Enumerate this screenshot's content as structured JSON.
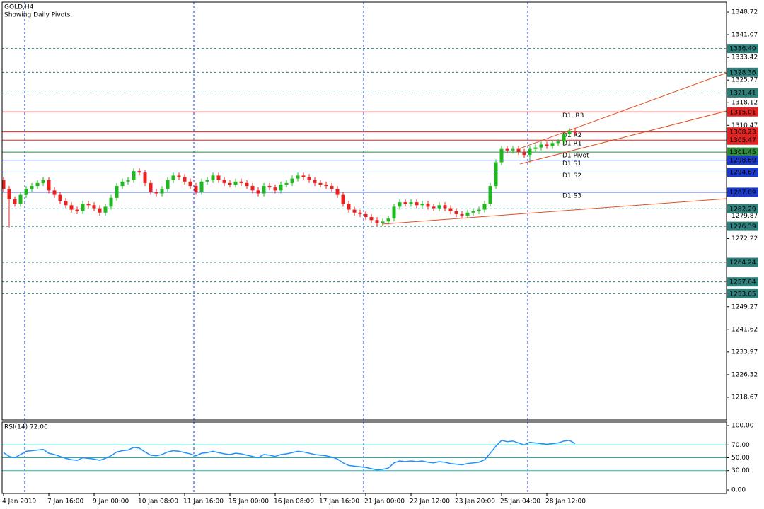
{
  "chart_data": [
    {
      "type": "candlestick",
      "title": "GOLD,H4",
      "subtitle": "Showing Daily Pivots.",
      "x": [
        "4 Jan 2019",
        null,
        null,
        null,
        null,
        null,
        null,
        null,
        "7 Jan 16:00",
        null,
        null,
        null,
        null,
        null,
        null,
        null,
        "9 Jan 00:00",
        null,
        null,
        null,
        null,
        null,
        null,
        null,
        "10 Jan 08:00",
        null,
        null,
        null,
        null,
        null,
        null,
        null,
        "11 Jan 16:00",
        null,
        null,
        null,
        null,
        null,
        null,
        null,
        "15 Jan 00:00",
        null,
        null,
        null,
        null,
        null,
        null,
        null,
        "16 Jan 08:00",
        null,
        null,
        null,
        null,
        null,
        null,
        null,
        "17 Jan 16:00",
        null,
        null,
        null,
        null,
        null,
        null,
        null,
        "21 Jan 00:00",
        null,
        null,
        null,
        null,
        null,
        null,
        null,
        "22 Jan 12:00",
        null,
        null,
        null,
        null,
        null,
        null,
        null,
        "23 Jan 20:00",
        null,
        null,
        null,
        null,
        null,
        null,
        null,
        "25 Jan 04:00",
        null,
        null,
        null,
        null,
        null,
        null,
        null,
        "28 Jan 12:00",
        null,
        null,
        null,
        null,
        null
      ],
      "open": [
        1292,
        1289,
        1285.5,
        1284,
        1287,
        1289,
        1290,
        1291,
        1292,
        1288.5,
        1287,
        1285,
        1283.5,
        1282,
        1281.5,
        1284,
        1283.5,
        1282.5,
        1281,
        1283,
        1286,
        1290,
        1291.5,
        1292,
        1295,
        1294.5,
        1291,
        1288,
        1287.5,
        1289,
        1292,
        1293.5,
        1293,
        1291.5,
        1290,
        1288,
        1291.5,
        1292,
        1293.5,
        1292,
        1291,
        1290.5,
        1291.5,
        1291,
        1290,
        1288.5,
        1287.5,
        1290,
        1289.5,
        1288.5,
        1290.5,
        1291,
        1292.5,
        1293.5,
        1293,
        1292,
        1291,
        1290.5,
        1290,
        1289,
        1287,
        1284,
        1282,
        1281,
        1280.5,
        1279.5,
        1278.5,
        1277.5,
        1278,
        1279,
        1283,
        1284.5,
        1284,
        1284.5,
        1283.5,
        1284,
        1283,
        1282.5,
        1283.5,
        1282.5,
        1281.5,
        1280.5,
        1280,
        1281,
        1281.5,
        1282,
        1284,
        1290,
        1298,
        1302.5,
        1302,
        1302.5,
        1301.5,
        1300.5,
        1302.5,
        1303,
        1304,
        1303.5,
        1304.5,
        1305,
        1307.5,
        1308.5
      ],
      "high": [
        1293,
        1290,
        1286.5,
        1288,
        1290,
        1291,
        1292,
        1293,
        1293,
        1289.5,
        1288,
        1286,
        1284.5,
        1283,
        1285,
        1285,
        1284.5,
        1283.5,
        1284,
        1287,
        1291,
        1292.5,
        1293,
        1296,
        1296,
        1295.5,
        1292,
        1289,
        1290,
        1293,
        1294.5,
        1294.5,
        1294,
        1292.5,
        1291,
        1292.5,
        1293,
        1294.5,
        1294.5,
        1293,
        1292,
        1292.5,
        1292.5,
        1292,
        1291,
        1289.5,
        1291,
        1291,
        1290.5,
        1291.5,
        1292,
        1293.5,
        1294.5,
        1294.5,
        1294,
        1293,
        1292,
        1291.5,
        1291,
        1290,
        1288,
        1285,
        1283,
        1282,
        1281.5,
        1280.5,
        1279.5,
        1279,
        1280,
        1284,
        1285.5,
        1285.5,
        1285.5,
        1285.5,
        1285,
        1285,
        1284,
        1284.5,
        1284.5,
        1283.5,
        1282.5,
        1281.5,
        1282,
        1282.5,
        1283,
        1285,
        1291,
        1299,
        1303.5,
        1303.5,
        1303.5,
        1303.5,
        1302.5,
        1303.5,
        1304,
        1305,
        1305,
        1305.5,
        1306,
        1308.5,
        1309.5,
        1309.5
      ],
      "low": [
        1288,
        1276,
        1283,
        1283,
        1286,
        1288,
        1289,
        1290,
        1287.5,
        1286,
        1284,
        1282.5,
        1281,
        1280.5,
        1280.5,
        1282.5,
        1281.5,
        1280,
        1280,
        1282,
        1285,
        1289,
        1290.5,
        1291,
        1293.5,
        1290,
        1287,
        1286.5,
        1286.5,
        1288,
        1291,
        1292,
        1290.5,
        1289,
        1287,
        1287,
        1290.5,
        1291,
        1291,
        1290,
        1289.5,
        1289.5,
        1290,
        1289,
        1287.5,
        1286.5,
        1286.5,
        1288.5,
        1287.5,
        1287.5,
        1289.5,
        1290,
        1291.5,
        1292,
        1291,
        1290,
        1289.5,
        1289,
        1288,
        1286,
        1283,
        1281,
        1280,
        1279.5,
        1278.5,
        1277.5,
        1276.5,
        1276.5,
        1277,
        1278,
        1282,
        1283,
        1283,
        1282.5,
        1282.5,
        1282,
        1281.5,
        1281.5,
        1281.5,
        1280.5,
        1279.5,
        1279,
        1279,
        1280,
        1280.5,
        1281,
        1283,
        1289,
        1297,
        1301,
        1301,
        1300.5,
        1299.5,
        1298,
        1301.5,
        1302,
        1302.5,
        1302.5,
        1303.5,
        1304,
        1306.5,
        1307
      ],
      "close": [
        1289,
        1285.5,
        1284,
        1287,
        1289,
        1290,
        1291,
        1292,
        1288.5,
        1287,
        1285,
        1283.5,
        1282,
        1281.5,
        1284,
        1283.5,
        1282.5,
        1281,
        1283,
        1286,
        1290,
        1291.5,
        1292,
        1295,
        1294.5,
        1291,
        1288,
        1287.5,
        1289,
        1292,
        1293.5,
        1293,
        1291.5,
        1290,
        1288,
        1291.5,
        1292,
        1293.5,
        1292,
        1291,
        1290.5,
        1291.5,
        1291,
        1290,
        1288.5,
        1287.5,
        1290,
        1289.5,
        1288.5,
        1290.5,
        1291,
        1292.5,
        1293.5,
        1293,
        1292,
        1291,
        1290.5,
        1290,
        1289,
        1287,
        1284,
        1282,
        1281,
        1280.5,
        1279.5,
        1278.5,
        1277.5,
        1278,
        1279,
        1283,
        1284.5,
        1284,
        1284.5,
        1283.5,
        1284,
        1283,
        1282.5,
        1283.5,
        1282.5,
        1281.5,
        1280.5,
        1280,
        1281,
        1281.5,
        1282,
        1284,
        1290,
        1298,
        1302.5,
        1302,
        1302.5,
        1301.5,
        1300.5,
        1302.5,
        1303,
        1304,
        1303.5,
        1304.5,
        1305,
        1307.5,
        1308.5,
        1308.23
      ],
      "bull_color": "#1fb81f",
      "bear_color": "#e8201e",
      "ylim": [
        1211.03,
        1352.06
      ],
      "yticks": [
        1348.72,
        1341.07,
        1333.42,
        1325.77,
        1318.12,
        1310.47,
        1279.87,
        1272.22,
        1249.27,
        1241.62,
        1233.97,
        1226.32,
        1218.67
      ],
      "levels": [
        {
          "value": 1336.4,
          "label": "1336.40",
          "color": "#2e7f7a",
          "style": "dashed"
        },
        {
          "value": 1328.36,
          "color": "#2e7f7a",
          "style": "dashed"
        },
        {
          "value": 1321.41,
          "color": "#2e7f7a",
          "style": "dashed"
        },
        {
          "value": 1315.01,
          "color": "#e02424",
          "style": "solid",
          "name": "D1, R3"
        },
        {
          "value": 1308.23,
          "color": "#e02424",
          "style": "solid",
          "name": "D1 R2"
        },
        {
          "value": 1305.47,
          "color": "#e02424",
          "style": "solid",
          "name": "D1 R1"
        },
        {
          "value": 1301.45,
          "color": "#2e8b3e",
          "style": "solid",
          "name": "D1 Pivot"
        },
        {
          "value": 1298.69,
          "color": "#1a3acc",
          "style": "solid",
          "name": "D1 S1"
        },
        {
          "value": 1294.67,
          "color": "#1a3acc",
          "style": "solid",
          "name": "D1 S2"
        },
        {
          "value": 1287.89,
          "color": "#1a3acc",
          "style": "solid",
          "name": "D1 S3"
        },
        {
          "value": 1282.29,
          "color": "#2e7f7a",
          "style": "dashed"
        },
        {
          "value": 1276.39,
          "color": "#2e7f7a",
          "style": "dashed"
        },
        {
          "value": 1264.24,
          "color": "#2e7f7a",
          "style": "dashed"
        },
        {
          "value": 1257.64,
          "color": "#2e7f7a",
          "style": "dashed"
        },
        {
          "value": 1253.65,
          "color": "#2e7f7a",
          "style": "dashed"
        }
      ]
    },
    {
      "type": "line",
      "title": "RSI(14) 72.06",
      "color": "#1e90ff",
      "values": [
        58,
        52,
        50,
        55,
        60,
        61,
        62,
        63,
        57,
        55,
        52,
        49,
        47,
        46,
        50,
        49,
        48,
        46,
        49,
        53,
        59,
        61,
        62,
        66,
        65,
        59,
        54,
        53,
        55,
        59,
        61,
        60,
        58,
        56,
        53,
        57,
        58,
        60,
        58,
        56,
        55,
        57,
        56,
        54,
        52,
        50,
        55,
        54,
        52,
        55,
        56,
        58,
        60,
        59,
        57,
        55,
        54,
        53,
        51,
        48,
        42,
        38,
        37,
        36,
        35,
        33,
        31,
        32,
        34,
        42,
        45,
        44,
        45,
        44,
        45,
        43,
        42,
        44,
        43,
        41,
        40,
        39,
        41,
        42,
        43,
        47,
        57,
        68,
        77,
        75,
        76,
        73,
        70,
        74,
        73,
        72,
        71,
        72,
        73,
        76,
        77,
        72.06
      ],
      "ylim": [
        -5.5,
        105.5
      ],
      "yticks": [
        {
          "value": 100,
          "label": "100.00"
        },
        {
          "value": 70,
          "label": "70.00"
        },
        {
          "value": 50,
          "label": "50.00"
        },
        {
          "value": 30,
          "label": "30.00"
        },
        {
          "value": 0,
          "label": "0.00"
        }
      ],
      "levels": [
        70,
        50,
        30
      ],
      "level_color": "#20b2aa"
    }
  ]
}
